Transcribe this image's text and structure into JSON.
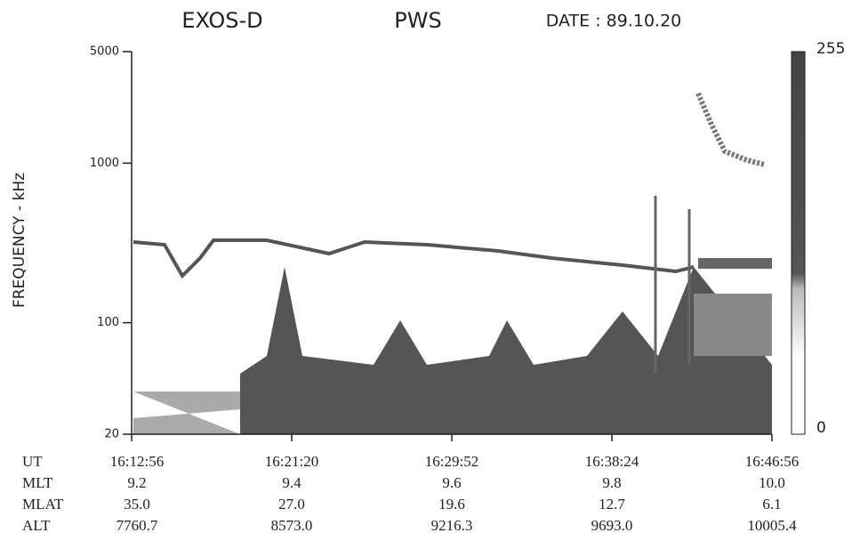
{
  "chart_data": {
    "type": "spectrogram",
    "title": "EXOS-D",
    "subtitle": "PWS",
    "date": "DATE : 89.10.20",
    "y_label": "FREQUENCY - kHz",
    "ylim": [
      20,
      5000
    ],
    "yticks": [
      20,
      100,
      1000,
      5000
    ],
    "log_y": true,
    "x": [
      "16:12:56",
      "16:21:20",
      "16:29:52",
      "16:38:24",
      "16:46:56"
    ],
    "clim": [
      0,
      255
    ],
    "cticks": [
      0,
      255
    ],
    "ephemeris": [
      {
        "name": "UT",
        "values": [
          "16:12:56",
          "16:21:20",
          "16:29:52",
          "16:38:24",
          "16:46:56"
        ]
      },
      {
        "name": "MLT",
        "values": [
          "9.2",
          "9.4",
          "9.6",
          "9.8",
          "10.0"
        ]
      },
      {
        "name": "MLAT",
        "values": [
          "35.0",
          "27.0",
          "19.6",
          "12.7",
          "6.1"
        ]
      },
      {
        "name": "ALT",
        "values": [
          "7760.7",
          "8573.0",
          "9216.3",
          "9693.0",
          "10005.4"
        ]
      }
    ]
  }
}
